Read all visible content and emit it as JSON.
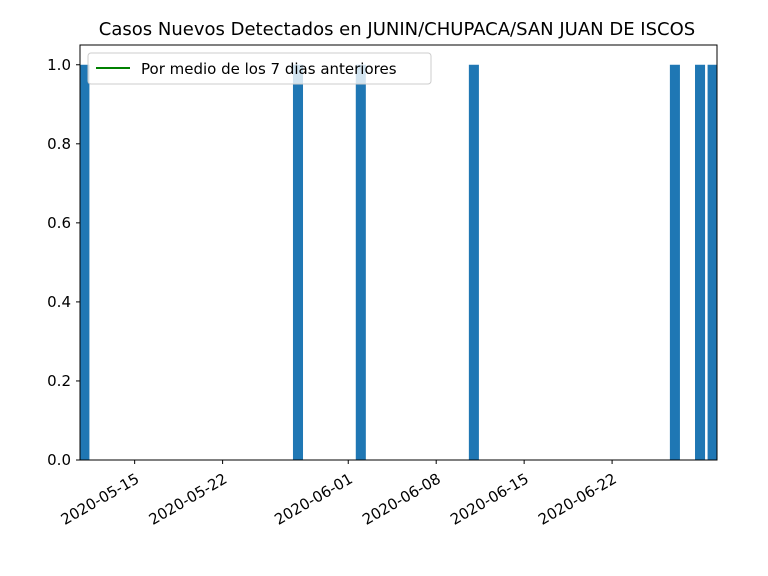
{
  "chart_data": {
    "type": "bar",
    "title": "Casos Nuevos Detectados en JUNIN/CHUPACA/SAN JUAN DE ISCOS",
    "xlabel": "",
    "ylabel": "",
    "x_axis": "date",
    "xlim": [
      "2020-05-11",
      "2020-06-30"
    ],
    "ylim": [
      0,
      1.05
    ],
    "x_ticks": [
      "2020-05-15",
      "2020-05-22",
      "2020-06-01",
      "2020-06-08",
      "2020-06-15",
      "2020-06-22"
    ],
    "y_ticks": [
      "0.0",
      "0.2",
      "0.4",
      "0.6",
      "0.8",
      "1.0"
    ],
    "y_tick_values": [
      0,
      0.2,
      0.4,
      0.6,
      0.8,
      1.0
    ],
    "series": [
      {
        "name": "",
        "kind": "bar",
        "color": "#1f77b4",
        "points": [
          {
            "x": "2020-05-11",
            "y": 1
          },
          {
            "x": "2020-05-28",
            "y": 1
          },
          {
            "x": "2020-06-02",
            "y": 1
          },
          {
            "x": "2020-06-11",
            "y": 1
          },
          {
            "x": "2020-06-27",
            "y": 1
          },
          {
            "x": "2020-06-29",
            "y": 1
          },
          {
            "x": "2020-06-30",
            "y": 1
          }
        ]
      },
      {
        "name": "Por medio de los 7 dias anteriores",
        "kind": "line",
        "color": "#008000",
        "points": []
      }
    ],
    "legend": {
      "position": "top-left"
    },
    "grid": false,
    "x_tick_rotation": 30
  }
}
